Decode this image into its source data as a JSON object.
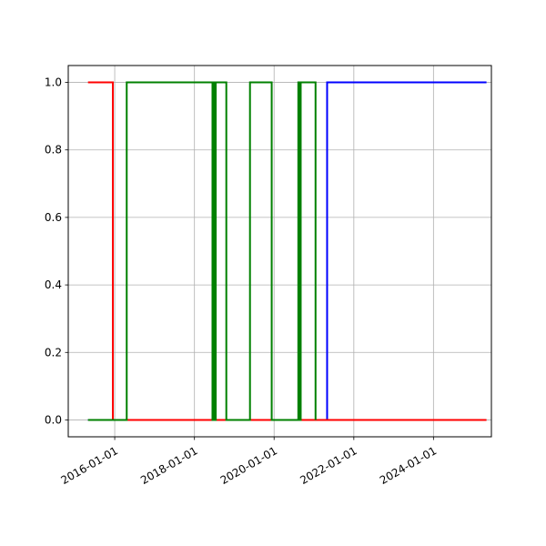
{
  "chart_data": {
    "type": "line",
    "x_axis": {
      "kind": "date",
      "range": [
        "2014-11-01",
        "2025-06-15"
      ],
      "ticks": [
        "2016-01-01",
        "2018-01-01",
        "2020-01-01",
        "2022-01-01",
        "2024-01-01"
      ],
      "tick_labels": [
        "2016-01-01",
        "2018-01-01",
        "2020-01-01",
        "2022-01-01",
        "2024-01-01"
      ]
    },
    "y_axis": {
      "range": [
        -0.05,
        1.05
      ],
      "ticks": [
        0.0,
        0.2,
        0.4,
        0.6,
        0.8,
        1.0
      ],
      "tick_labels": [
        "0.0",
        "0.2",
        "0.4",
        "0.6",
        "0.8",
        "1.0"
      ]
    },
    "grid": true,
    "series": [
      {
        "color": "#0000ff",
        "x": [
          "2015-05-01",
          "2021-05-01",
          "2021-05-01",
          "2025-05-01"
        ],
        "y": [
          0,
          0,
          1,
          1
        ]
      },
      {
        "color": "#ff0000",
        "x": [
          "2015-05-01",
          "2015-12-15",
          "2015-12-15",
          "2025-05-01"
        ],
        "y": [
          1,
          1,
          0,
          0
        ]
      },
      {
        "color": "#008000",
        "x": [
          "2015-05-01",
          "2016-04-20",
          "2016-04-20",
          "2018-06-15",
          "2018-06-15",
          "2018-06-25",
          "2018-06-25",
          "2018-07-05",
          "2018-07-05",
          "2018-07-15",
          "2018-07-15",
          "2018-10-20",
          "2018-10-20",
          "2019-05-25",
          "2019-05-25",
          "2019-12-10",
          "2019-12-10",
          "2020-08-10",
          "2020-08-10",
          "2020-08-20",
          "2020-08-20",
          "2020-09-01",
          "2020-09-01",
          "2021-01-15",
          "2021-01-15"
        ],
        "y": [
          0,
          0,
          1,
          1,
          0,
          0,
          1,
          1,
          0,
          0,
          1,
          1,
          0,
          0,
          1,
          1,
          0,
          0,
          1,
          1,
          0,
          0,
          1,
          1,
          0
        ]
      }
    ]
  }
}
